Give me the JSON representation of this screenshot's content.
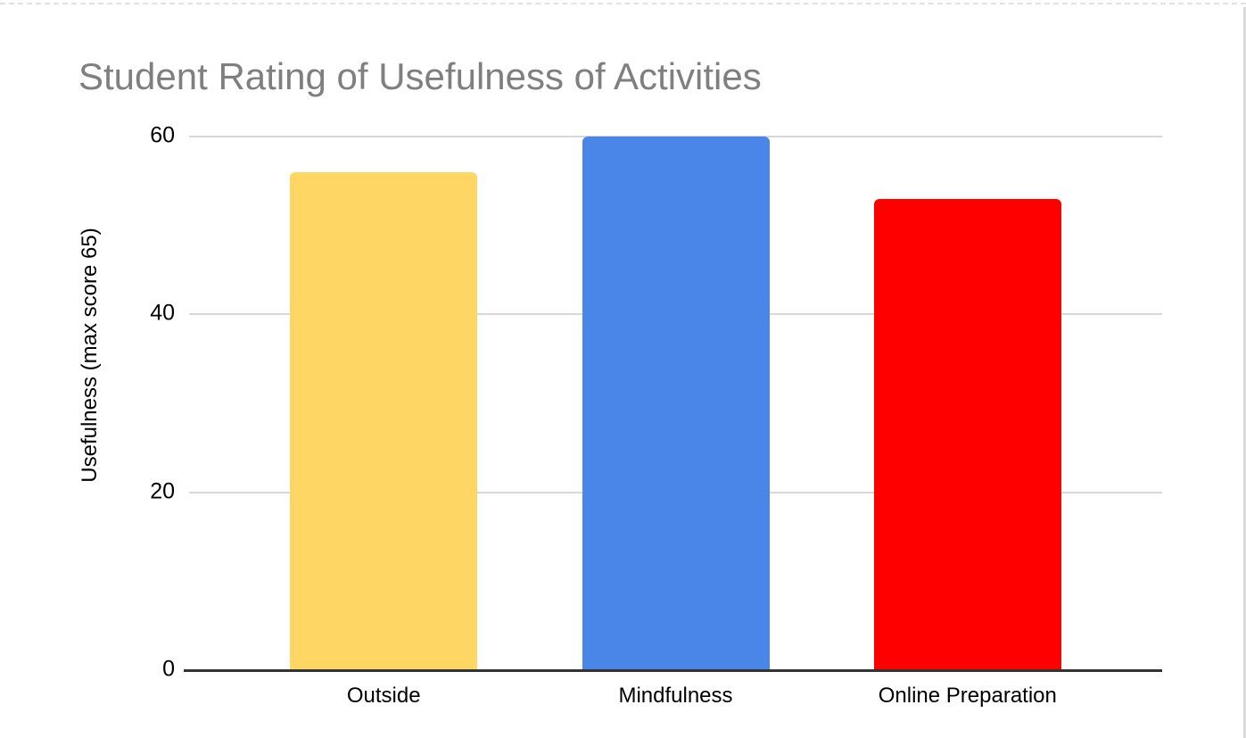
{
  "page": {
    "background": "#ffffff"
  },
  "chart_data": {
    "type": "bar",
    "title": "Student Rating of Usefulness of Activities",
    "title_color": "#7f7f7f",
    "categories": [
      "Outside",
      "Mindfulness",
      "Online Preparation"
    ],
    "values": [
      56,
      60,
      53
    ],
    "bar_colors": [
      "#FDD663",
      "#4A86E8",
      "#FF0000"
    ],
    "xlabel": "",
    "ylabel": "Usefulness (max score 65)",
    "ylim": [
      0,
      60
    ],
    "yticks": [
      0,
      20,
      40,
      60
    ],
    "grid": true,
    "legend": "none",
    "gridline_color": "#d8d8d8",
    "axis_line_color": "#333333",
    "tick_label_color": "#000000"
  }
}
